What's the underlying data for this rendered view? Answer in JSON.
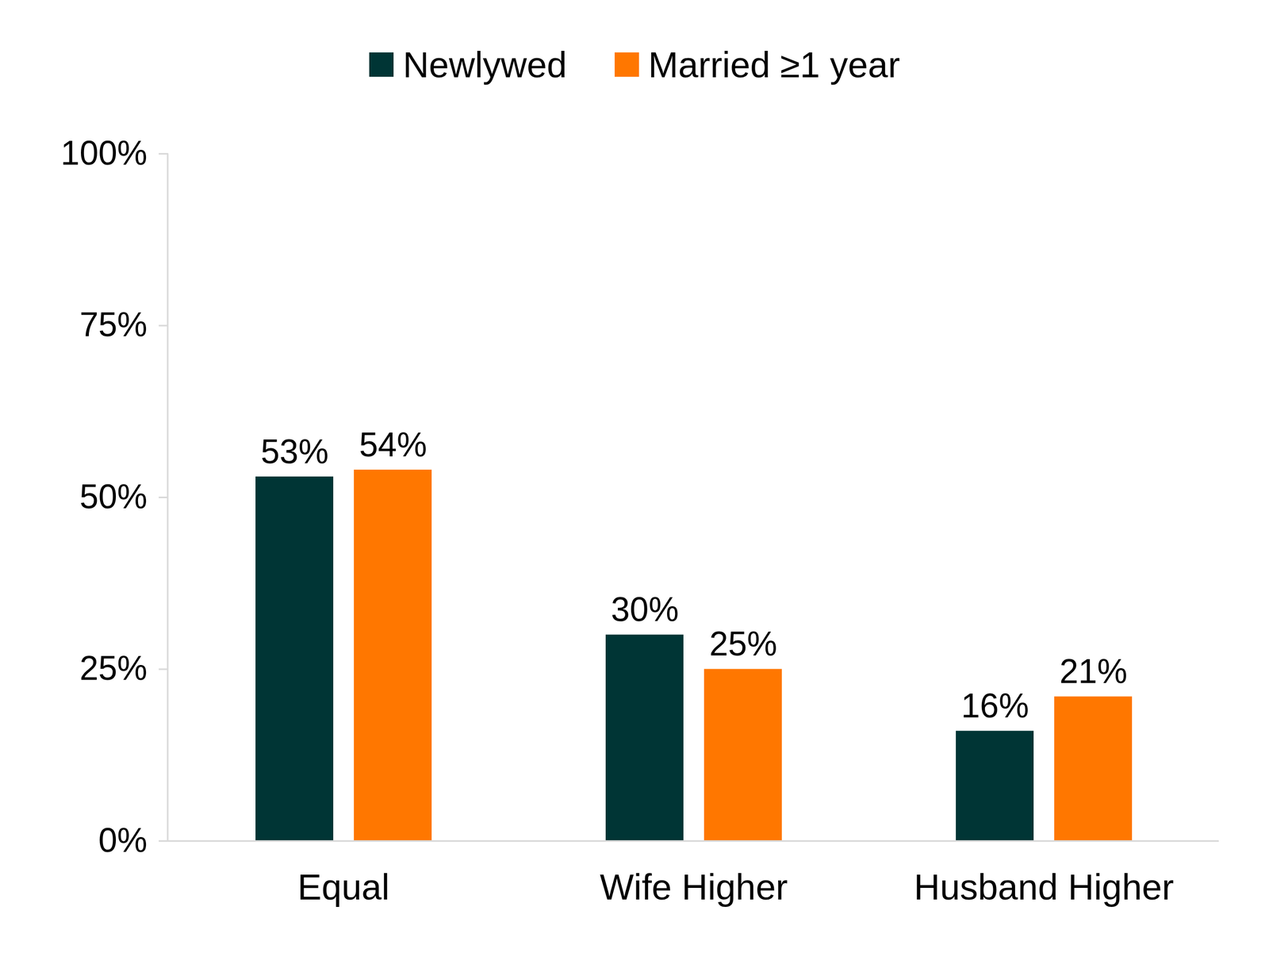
{
  "chart_data": {
    "type": "bar",
    "categories": [
      "Equal",
      "Wife Higher",
      "Husband Higher"
    ],
    "series": [
      {
        "name": "Newlywed",
        "color": "#003535",
        "values": [
          53,
          30,
          16
        ],
        "value_labels": [
          "53%",
          "30%",
          "16%"
        ]
      },
      {
        "name": "Married ≥1 year",
        "color": "#FF7700",
        "values": [
          54,
          25,
          21
        ],
        "value_labels": [
          "54%",
          "25%",
          "21%"
        ]
      }
    ],
    "ylim": [
      0,
      100
    ],
    "yticks": [
      {
        "value": 0,
        "label": "0%"
      },
      {
        "value": 25,
        "label": "25%"
      },
      {
        "value": 50,
        "label": "50%"
      },
      {
        "value": 75,
        "label": "75%"
      },
      {
        "value": 100,
        "label": "100%"
      }
    ],
    "grid": false,
    "legend": "top",
    "data_labels": true
  }
}
